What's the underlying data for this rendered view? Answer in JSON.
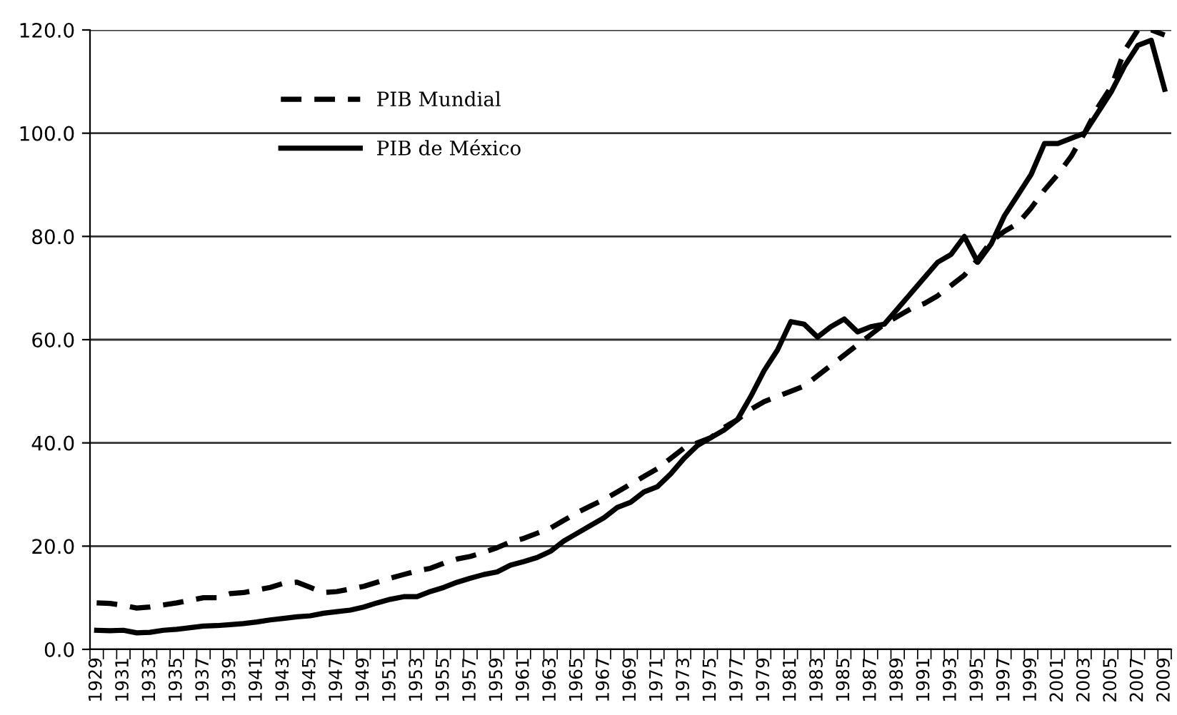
{
  "chart_data": {
    "type": "line",
    "categories": [
      "1929",
      null,
      "1931",
      null,
      "1933",
      null,
      "1935",
      null,
      "1937",
      null,
      "1939",
      null,
      "1941",
      null,
      "1943",
      null,
      "1945",
      null,
      "1947",
      null,
      "1949",
      null,
      "1951",
      null,
      "1953",
      null,
      "1955",
      null,
      "1957",
      null,
      "1959",
      null,
      "1961",
      null,
      "1963",
      null,
      "1965",
      null,
      "1967",
      null,
      "1969",
      null,
      "1971",
      null,
      "1973",
      null,
      "1975",
      null,
      "1977",
      null,
      "1979",
      null,
      "1981",
      null,
      "1983",
      null,
      "1985",
      null,
      "1987",
      null,
      "1989",
      null,
      "1991",
      null,
      "1993",
      null,
      "1995",
      null,
      "1997",
      null,
      "1999",
      null,
      "2001",
      null,
      "2003",
      null,
      "2005",
      null,
      "2007",
      null,
      "2009"
    ],
    "series": [
      {
        "name": "PIB Mundial",
        "color": "#000000",
        "line_style": "dashed",
        "values": [
          9.0,
          8.9,
          8.5,
          8.0,
          8.2,
          8.6,
          9.0,
          9.5,
          10.0,
          10.0,
          10.8,
          11.0,
          11.5,
          12.0,
          12.8,
          13.0,
          12.0,
          11.0,
          11.2,
          11.7,
          12.2,
          13.0,
          13.8,
          14.5,
          15.2,
          15.7,
          16.7,
          17.5,
          18.0,
          18.8,
          19.7,
          20.8,
          21.5,
          22.5,
          23.5,
          25.0,
          26.5,
          27.8,
          29.0,
          30.5,
          32.0,
          33.5,
          35.0,
          37.0,
          39.0,
          40.0,
          41.0,
          43.0,
          44.5,
          46.5,
          48.0,
          49.0,
          50.0,
          51.0,
          53.0,
          55.0,
          57.0,
          59.0,
          61.0,
          63.0,
          64.5,
          66.0,
          67.0,
          68.5,
          70.5,
          72.5,
          75.5,
          79.0,
          81.0,
          82.5,
          85.5,
          89.0,
          92.0,
          95.5,
          100.0,
          105.0,
          109.0,
          116.0,
          120.0,
          120.0,
          119.0
        ]
      },
      {
        "name": "PIB de México",
        "color": "#000000",
        "line_style": "solid",
        "values": [
          3.7,
          3.6,
          3.7,
          3.2,
          3.3,
          3.7,
          3.9,
          4.2,
          4.5,
          4.6,
          4.8,
          5.0,
          5.3,
          5.7,
          6.0,
          6.3,
          6.5,
          7.0,
          7.3,
          7.6,
          8.2,
          9.0,
          9.7,
          10.2,
          10.2,
          11.2,
          12.0,
          13.0,
          13.8,
          14.5,
          15.0,
          16.3,
          17.0,
          17.8,
          19.0,
          21.0,
          22.5,
          24.0,
          25.5,
          27.5,
          28.5,
          30.5,
          31.5,
          34.0,
          37.0,
          39.5,
          41.0,
          42.5,
          44.5,
          49.0,
          54.0,
          58.0,
          63.5,
          63.0,
          60.5,
          62.5,
          64.0,
          61.5,
          62.5,
          63.0,
          66.0,
          69.0,
          72.0,
          75.0,
          76.5,
          80.0,
          75.0,
          78.5,
          84.0,
          88.0,
          92.0,
          98.0,
          98.0,
          99.0,
          100.0,
          104.0,
          108.0,
          113.0,
          117.0,
          118.0,
          108.5
        ]
      }
    ],
    "ylim": [
      0,
      120
    ],
    "yticks": [
      {
        "value": 0,
        "label": "0.0"
      },
      {
        "value": 20,
        "label": "20.0"
      },
      {
        "value": 40,
        "label": "40.0"
      },
      {
        "value": 60,
        "label": "60.0"
      },
      {
        "value": 80,
        "label": "80.0"
      },
      {
        "value": 100,
        "label": "100.0"
      },
      {
        "value": 120,
        "label": "120.0"
      }
    ],
    "grid": "y",
    "legend": "top left"
  }
}
